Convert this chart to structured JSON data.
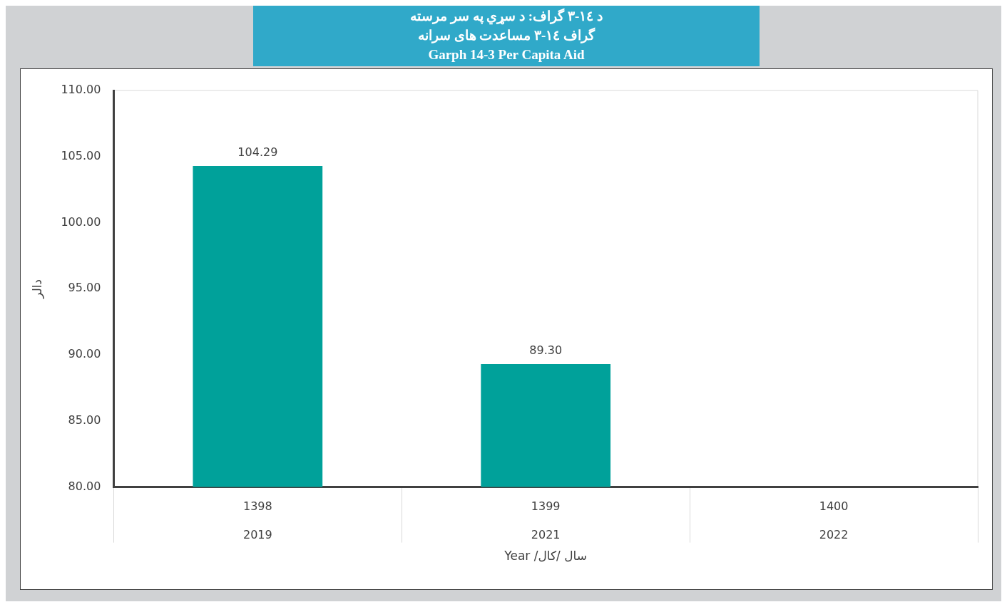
{
  "chart_data": {
    "type": "bar",
    "title": "د ١٤-٣ گراف: د سړي په سر مرسته\nگراف ١٤-٣ مساعدت های سرانه\nGarph 14-3 Per Capita Aid",
    "ylabel": "دالر",
    "xlabel": "Year /سال /کال",
    "categories": [
      "1398\n2019",
      "1399\n2021",
      "1400\n2022"
    ],
    "values": [
      104.29,
      89.3,
      null
    ],
    "color": "#00a19a",
    "ylim": [
      80,
      110
    ],
    "yticks": [
      {
        "value": 80,
        "label": "80.00"
      },
      {
        "value": 85,
        "label": "85.00"
      },
      {
        "value": 90,
        "label": "90.00"
      },
      {
        "value": 95,
        "label": "95.00"
      },
      {
        "value": 100,
        "label": "100.00"
      },
      {
        "value": 105,
        "label": "105.00"
      },
      {
        "value": 110,
        "label": "110.00"
      }
    ],
    "value_labels": [
      "104.29",
      "89.30",
      null
    ],
    "legend": false
  }
}
